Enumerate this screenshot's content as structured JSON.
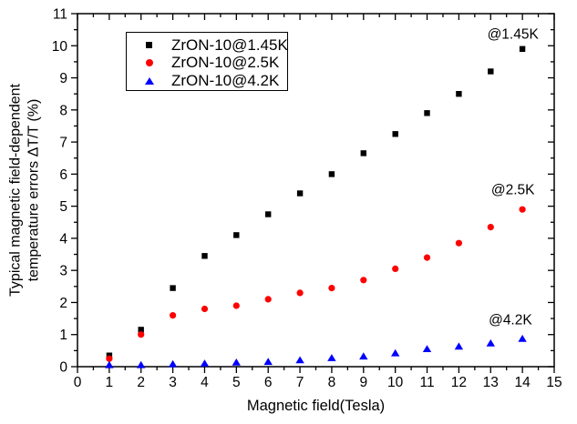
{
  "figure": {
    "background": "#ffffff",
    "frame_color": "#000000",
    "text_color": "#000000"
  },
  "chart_data": {
    "type": "scatter",
    "title": "",
    "xlabel": "Magnetic field(Tesla)",
    "ylabel": "Typical magnetic field-dependent temperature errors ΔT/T (%)",
    "ylabel_line1": "Typical magnetic field-dependent",
    "ylabel_line2": "temperature errors ΔT/T (%)",
    "xlim": [
      0,
      15
    ],
    "ylim": [
      0,
      11
    ],
    "x_major_tick_step": 1,
    "x_minor_tick_step": 0.5,
    "y_major_tick_step": 1,
    "y_minor_tick_step": 0.5,
    "x_tick_labels": [
      "0",
      "1",
      "2",
      "3",
      "4",
      "5",
      "6",
      "7",
      "8",
      "9",
      "10",
      "11",
      "12",
      "13",
      "14",
      "15"
    ],
    "y_tick_labels": [
      "0",
      "1",
      "2",
      "3",
      "4",
      "5",
      "6",
      "7",
      "8",
      "9",
      "10",
      "11"
    ],
    "grid": false,
    "legend_position": "top-left-inside",
    "x": [
      1,
      2,
      3,
      4,
      5,
      6,
      7,
      8,
      9,
      10,
      11,
      12,
      13,
      14
    ],
    "series": [
      {
        "name": "ZrON-10@1.45K",
        "marker": "square",
        "color": "#000000",
        "values": [
          0.35,
          1.15,
          2.45,
          3.45,
          4.1,
          4.75,
          5.4,
          6.0,
          6.65,
          7.25,
          7.9,
          8.5,
          9.2,
          9.9
        ]
      },
      {
        "name": "ZrON-10@2.5K",
        "marker": "circle",
        "color": "#ff0000",
        "values": [
          0.25,
          1.0,
          1.6,
          1.8,
          1.9,
          2.1,
          2.3,
          2.45,
          2.7,
          3.05,
          3.4,
          3.85,
          4.35,
          4.9
        ]
      },
      {
        "name": "ZrON-10@4.2K",
        "marker": "triangle",
        "color": "#0000ff",
        "values": [
          0.05,
          0.05,
          0.08,
          0.1,
          0.13,
          0.15,
          0.2,
          0.27,
          0.32,
          0.42,
          0.55,
          0.63,
          0.73,
          0.87
        ]
      }
    ],
    "annotations": [
      {
        "text": "@1.45K",
        "x": 13.7,
        "y": 10.38
      },
      {
        "text": "@2.5K",
        "x": 13.7,
        "y": 5.53
      },
      {
        "text": "@4.2K",
        "x": 13.62,
        "y": 1.47
      }
    ]
  }
}
